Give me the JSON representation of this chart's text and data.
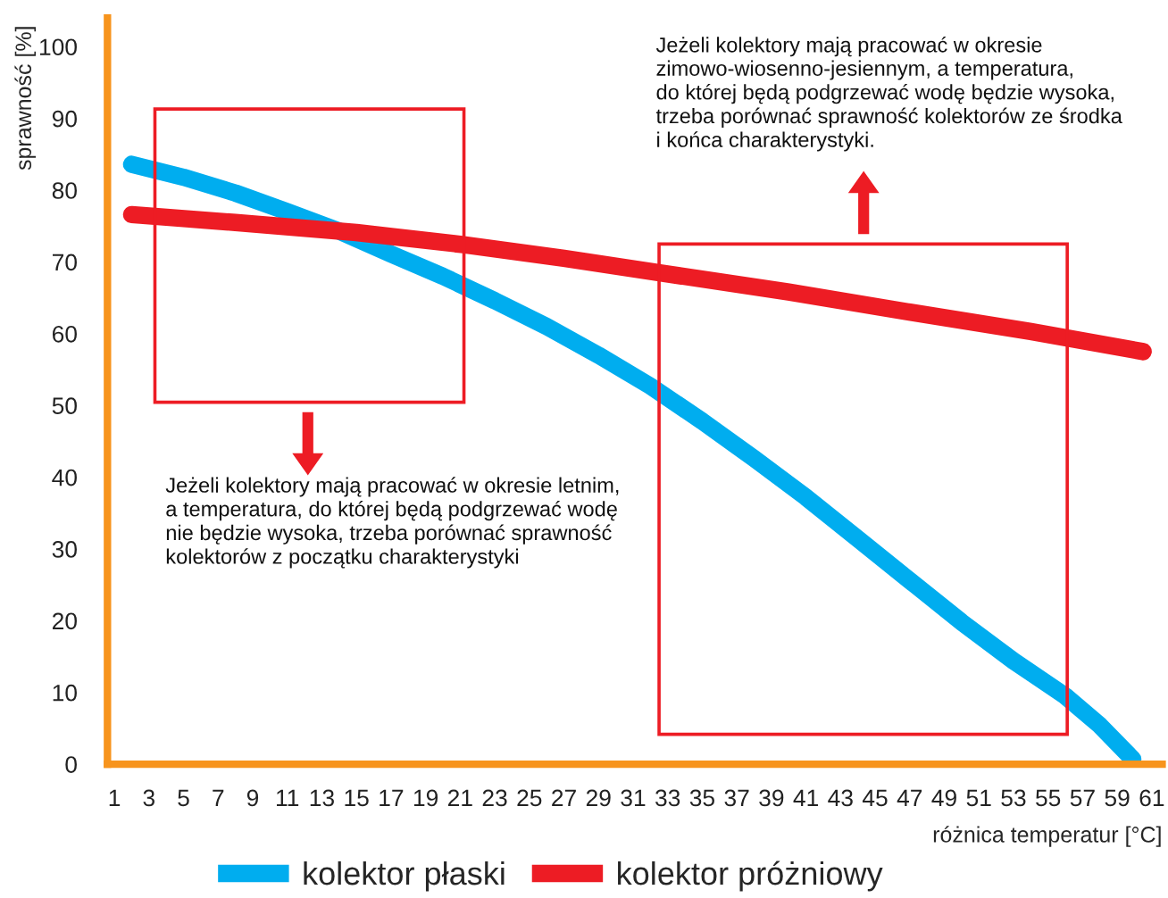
{
  "chart_data": {
    "type": "line",
    "xlabel": "różnica temperatur [°C]",
    "ylabel": "sprawność [%]",
    "x": [
      2,
      5,
      8,
      11,
      14,
      17,
      20,
      23,
      26,
      29,
      32,
      35,
      38,
      41,
      44,
      47,
      50,
      53,
      56,
      58,
      59.9
    ],
    "series": [
      {
        "name": "kolektor płaski",
        "color": "#00adef",
        "values": [
          83.6,
          81.8,
          79.6,
          77.0,
          74.3,
          71.1,
          68.0,
          64.6,
          61.0,
          57.0,
          52.7,
          47.8,
          42.6,
          37.2,
          31.4,
          25.6,
          19.8,
          14.4,
          9.5,
          5.4,
          0.7
        ]
      },
      {
        "name": "kolektor próżniowy",
        "color": "#ed1c24",
        "x": [
          2,
          8,
          15,
          21.2,
          27,
          32.8,
          40,
          47,
          54,
          60.5
        ],
        "values": [
          76.6,
          75.5,
          74.1,
          72.4,
          70.5,
          68.4,
          65.8,
          63.0,
          60.3,
          57.5
        ]
      }
    ],
    "xlim": [
      0.6,
      61.6
    ],
    "ylim": [
      0,
      104
    ],
    "xticks": [
      1,
      3,
      5,
      7,
      9,
      11,
      13,
      15,
      17,
      19,
      21,
      23,
      25,
      27,
      29,
      31,
      33,
      35,
      37,
      39,
      41,
      43,
      45,
      47,
      49,
      51,
      53,
      55,
      57,
      59,
      61
    ],
    "yticks": [
      0,
      10,
      20,
      30,
      40,
      50,
      60,
      70,
      80,
      90,
      100
    ],
    "grid": false,
    "legend": "bottom",
    "marker": "none",
    "line_style": "solid",
    "annotations": [
      "Jeżeli kolektory mają pracować w okresie letnim,\na temperatura, do której będą podgrzewać wodę\nnie będzie wysoka, trzeba porównać sprawność\nkolektorów z początku charakterystyki",
      "Jeżeli kolektory mają pracować w okresie\nzimowo-wiosenno-jesiennym, a temperatura,\ndo której będą podgrzewać wodę będzie wysoka,\ntrzeba porównać sprawność kolektorów ze środka\ni końca charakterystyki."
    ]
  }
}
